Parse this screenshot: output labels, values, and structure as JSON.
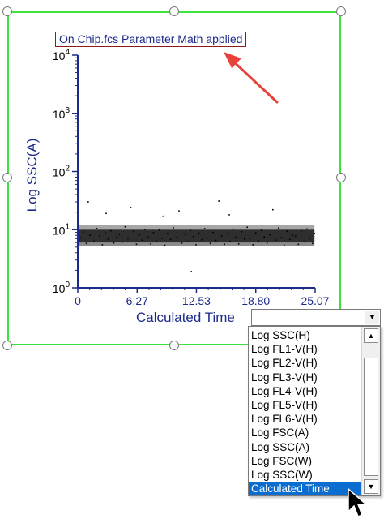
{
  "chart_title": "On Chip.fcs Parameter Math applied",
  "y_axis_label": "Log SSC(A)",
  "y_tick_labels": [
    {
      "base": "10",
      "exp": "4"
    },
    {
      "base": "10",
      "exp": "3"
    },
    {
      "base": "10",
      "exp": "2"
    },
    {
      "base": "10",
      "exp": "1"
    },
    {
      "base": "10",
      "exp": "0"
    }
  ],
  "x_tick_labels": [
    "0",
    "6.27",
    "12.53",
    "18.80",
    "25.07"
  ],
  "x_axis_selector": {
    "selected": "Calculated Time",
    "options": [
      "Log SSC(H)",
      "Log FL1-V(H)",
      "Log FL2-V(H)",
      "Log FL3-V(H)",
      "Log FL4-V(H)",
      "Log FL5-V(H)",
      "Log FL6-V(H)",
      "Log FSC(A)",
      "Log SSC(A)",
      "Log FSC(W)",
      "Log SSC(W)",
      "Calculated Time"
    ]
  },
  "chart_data": {
    "type": "scatter",
    "title": "On Chip.fcs Parameter Math applied",
    "xlabel": "Calculated Time",
    "ylabel": "Log SSC(A)",
    "x_scale": "linear",
    "y_scale": "log",
    "xlim": [
      0,
      25.07
    ],
    "ylim": [
      1,
      10000
    ],
    "x_ticks": [
      0,
      6.27,
      12.53,
      18.8,
      25.07
    ],
    "y_ticks": [
      1,
      10,
      100,
      1000,
      10000
    ],
    "points": [
      [
        0.3,
        7.2
      ],
      [
        0.6,
        9.1
      ],
      [
        0.9,
        5.8
      ],
      [
        1.1,
        30
      ],
      [
        1.3,
        8.0
      ],
      [
        1.7,
        6.3
      ],
      [
        2.0,
        10.5
      ],
      [
        2.3,
        7.7
      ],
      [
        2.6,
        5.5
      ],
      [
        2.9,
        8.8
      ],
      [
        3.2,
        6.9
      ],
      [
        3.5,
        9.6
      ],
      [
        3.8,
        5.9
      ],
      [
        4.1,
        7.4
      ],
      [
        4.4,
        8.3
      ],
      [
        4.7,
        6.1
      ],
      [
        5.0,
        11.2
      ],
      [
        5.3,
        7.0
      ],
      [
        5.6,
        24
      ],
      [
        5.9,
        9.3
      ],
      [
        6.2,
        5.6
      ],
      [
        6.5,
        8.1
      ],
      [
        6.8,
        6.6
      ],
      [
        7.1,
        10.1
      ],
      [
        7.4,
        7.5
      ],
      [
        7.7,
        5.7
      ],
      [
        8.0,
        8.9
      ],
      [
        8.3,
        6.4
      ],
      [
        8.6,
        9.9
      ],
      [
        8.9,
        7.1
      ],
      [
        9.2,
        5.4
      ],
      [
        9.5,
        8.6
      ],
      [
        9.8,
        6.8
      ],
      [
        10.1,
        10.8
      ],
      [
        10.4,
        7.3
      ],
      [
        10.7,
        21
      ],
      [
        11.0,
        5.9
      ],
      [
        11.3,
        8.4
      ],
      [
        11.6,
        6.2
      ],
      [
        11.9,
        9.7
      ],
      [
        12.2,
        7.6
      ],
      [
        12.5,
        5.5
      ],
      [
        12.8,
        8.7
      ],
      [
        13.1,
        6.7
      ],
      [
        13.4,
        10.4
      ],
      [
        13.7,
        7.2
      ],
      [
        14.0,
        5.8
      ],
      [
        14.3,
        9.0
      ],
      [
        14.6,
        6.5
      ],
      [
        14.9,
        31
      ],
      [
        15.2,
        7.8
      ],
      [
        15.5,
        5.6
      ],
      [
        15.8,
        8.5
      ],
      [
        16.1,
        6.3
      ],
      [
        16.4,
        10.2
      ],
      [
        16.7,
        7.4
      ],
      [
        17.0,
        5.7
      ],
      [
        17.3,
        9.2
      ],
      [
        17.6,
        6.9
      ],
      [
        17.9,
        11.0
      ],
      [
        18.2,
        7.0
      ],
      [
        18.5,
        5.5
      ],
      [
        18.8,
        8.8
      ],
      [
        19.1,
        6.4
      ],
      [
        19.4,
        9.8
      ],
      [
        19.7,
        7.5
      ],
      [
        20.0,
        5.9
      ],
      [
        20.3,
        8.2
      ],
      [
        20.6,
        22
      ],
      [
        20.9,
        6.6
      ],
      [
        21.2,
        10.6
      ],
      [
        21.5,
        7.3
      ],
      [
        21.8,
        5.4
      ],
      [
        22.1,
        9.4
      ],
      [
        22.4,
        6.8
      ],
      [
        22.7,
        8.0
      ],
      [
        23.0,
        7.7
      ],
      [
        23.3,
        5.6
      ],
      [
        23.6,
        9.5
      ],
      [
        23.9,
        6.2
      ],
      [
        24.2,
        10.3
      ],
      [
        24.5,
        7.1
      ],
      [
        24.8,
        5.8
      ],
      [
        25.0,
        8.6
      ],
      [
        12.0,
        1.9
      ],
      [
        3.0,
        19
      ],
      [
        16.0,
        18
      ],
      [
        9.0,
        17
      ]
    ]
  }
}
